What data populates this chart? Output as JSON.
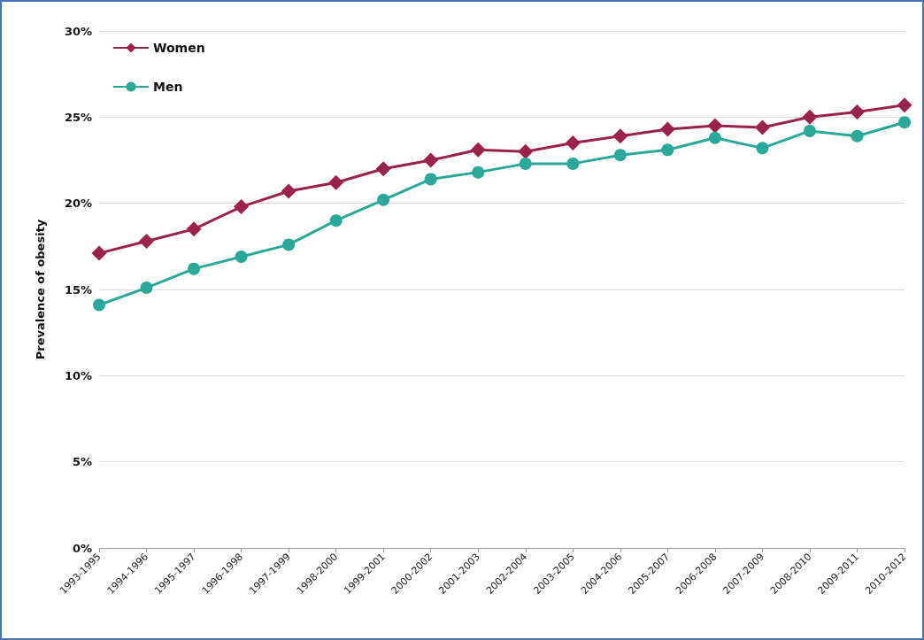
{
  "chart_data": {
    "type": "line",
    "ylabel": "Prevalence of obesity",
    "categories": [
      "1993-1995",
      "1994-1996",
      "1995-1997",
      "1996-1998",
      "1997-1999",
      "1998-2000",
      "1999-2001",
      "2000-2002",
      "2001-2003",
      "2002-2004",
      "2003-2005",
      "2004-2006",
      "2005-2007",
      "2006-2008",
      "2007-2009",
      "2008-2010",
      "2009-2011",
      "2010-2012"
    ],
    "series": [
      {
        "name": "Women",
        "color": "#9b2248",
        "marker": "diamond",
        "values": [
          17.1,
          17.8,
          18.5,
          19.8,
          20.7,
          21.2,
          22.0,
          22.5,
          23.1,
          23.0,
          23.5,
          23.9,
          24.3,
          24.5,
          24.4,
          25.0,
          25.3,
          25.7
        ]
      },
      {
        "name": "Men",
        "color": "#2aa99b",
        "marker": "circle",
        "values": [
          14.1,
          15.1,
          16.2,
          16.9,
          17.6,
          19.0,
          20.2,
          21.4,
          21.8,
          22.3,
          22.3,
          22.8,
          23.1,
          23.8,
          23.2,
          24.2,
          23.9,
          24.7
        ]
      }
    ],
    "ylim": [
      0,
      30
    ],
    "yticks": [
      {
        "value": 0,
        "label": "0%"
      },
      {
        "value": 5,
        "label": "5%"
      },
      {
        "value": 10,
        "label": "10%"
      },
      {
        "value": 15,
        "label": "15%"
      },
      {
        "value": 20,
        "label": "20%"
      },
      {
        "value": 25,
        "label": "25%"
      },
      {
        "value": 30,
        "label": "30%"
      }
    ],
    "grid": "y",
    "legend": "top left"
  }
}
